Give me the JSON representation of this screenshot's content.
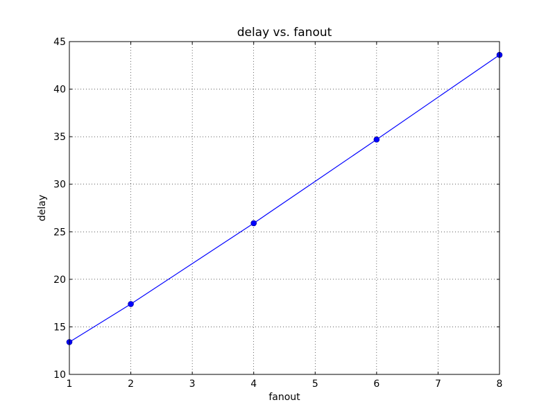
{
  "chart_data": {
    "type": "line",
    "title": "delay vs. fanout",
    "xlabel": "fanout",
    "ylabel": "delay",
    "xlim": [
      1,
      8
    ],
    "ylim": [
      10,
      45
    ],
    "xticks": [
      "1",
      "2",
      "3",
      "4",
      "5",
      "6",
      "7",
      "8"
    ],
    "yticks": [
      "10",
      "15",
      "20",
      "25",
      "30",
      "35",
      "40",
      "45"
    ],
    "grid": true,
    "series": [
      {
        "color": "#0000ff",
        "marker": "circle",
        "x": [
          1,
          2,
          4,
          6,
          8
        ],
        "y": [
          13.4,
          17.4,
          25.9,
          34.7,
          43.6
        ]
      }
    ]
  }
}
